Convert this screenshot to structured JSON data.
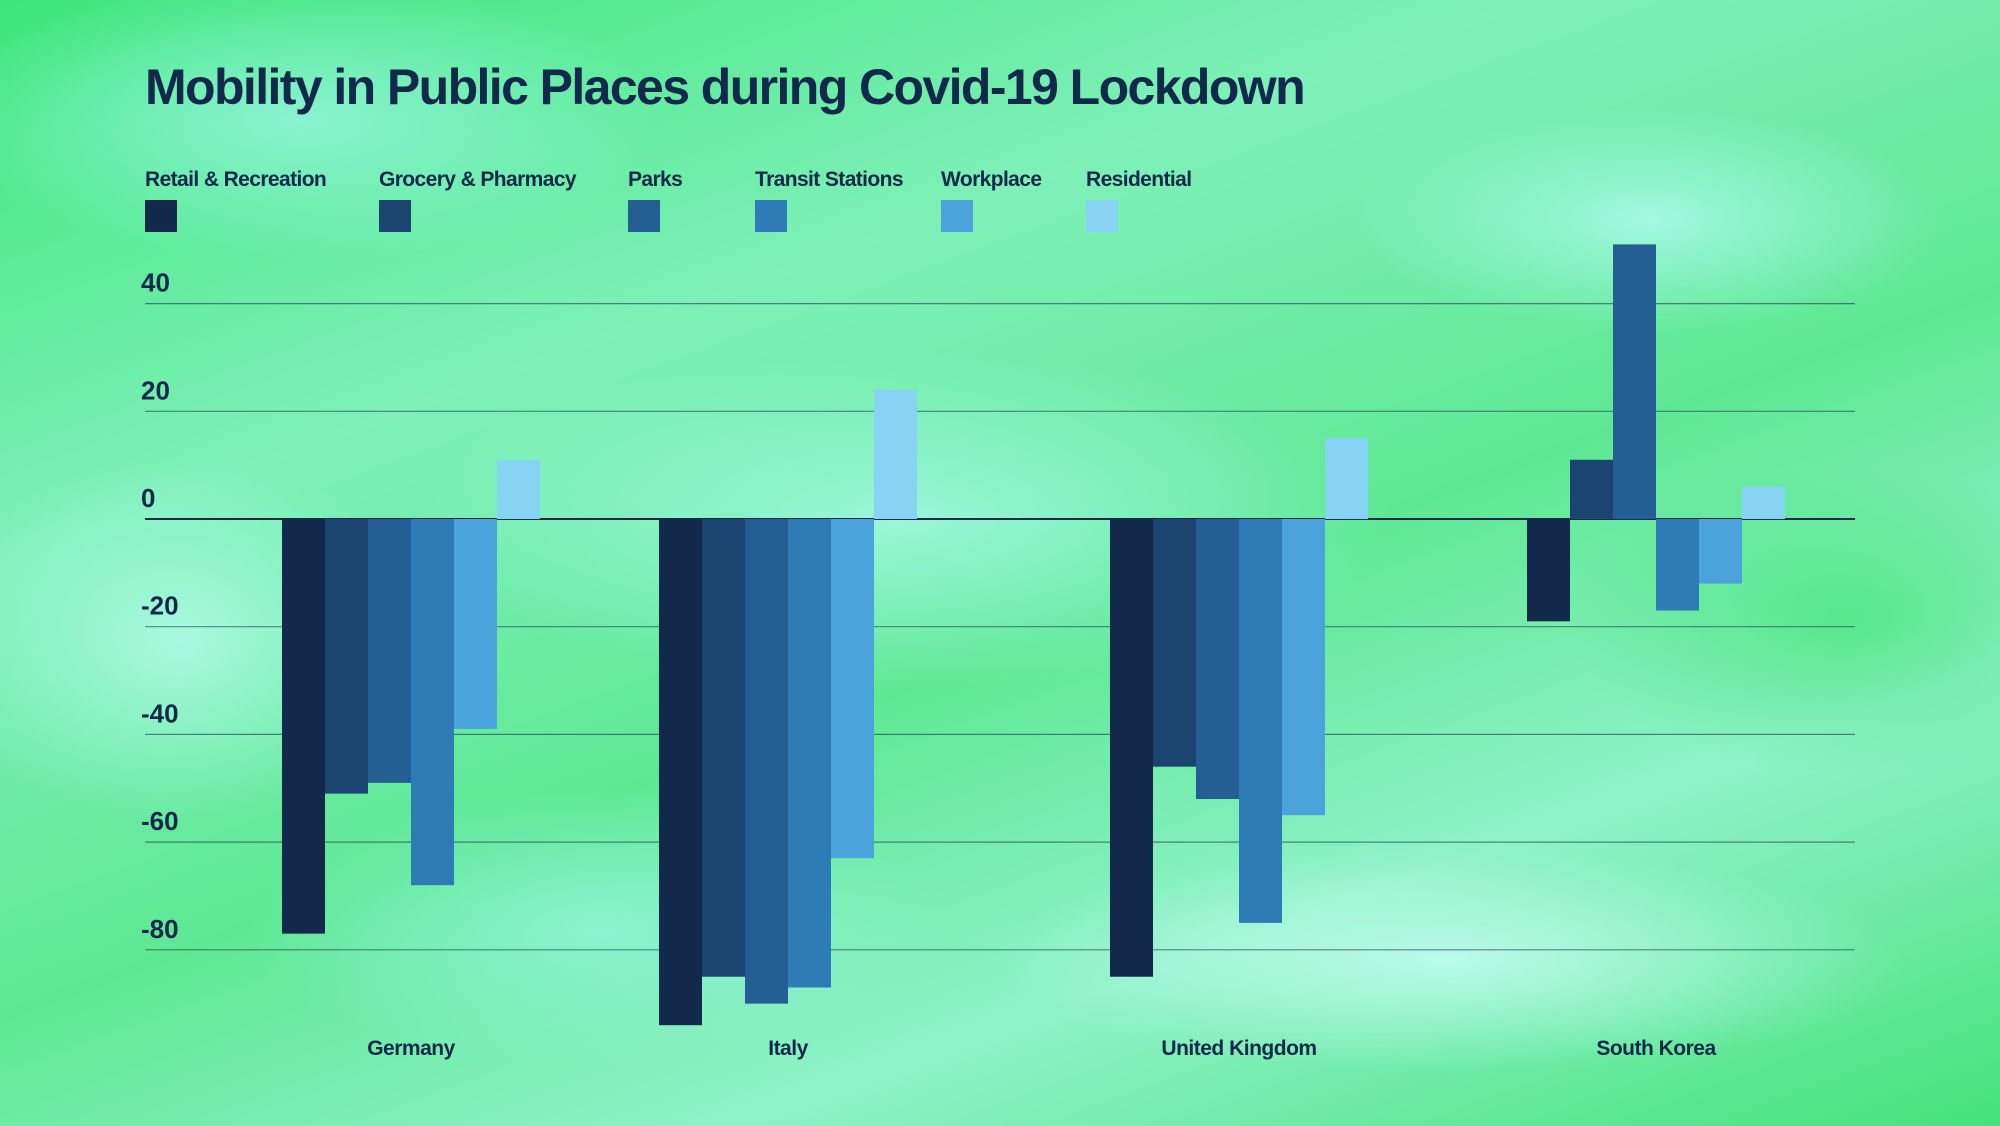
{
  "title": "Mobility in Public Places during Covid-19 Lockdown",
  "chart_data": {
    "type": "bar",
    "title": "Mobility in Public Places during Covid-19 Lockdown",
    "xlabel": "",
    "ylabel": "",
    "categories": [
      "Germany",
      "Italy",
      "United Kingdom",
      "South Korea"
    ],
    "series": [
      {
        "name": "Retail & Recreation",
        "color": "#13294b",
        "values": [
          -77,
          -94,
          -85,
          -19
        ]
      },
      {
        "name": "Grocery & Pharmacy",
        "color": "#1b4470",
        "values": [
          -51,
          -85,
          -46,
          11
        ]
      },
      {
        "name": "Parks",
        "color": "#245f93",
        "values": [
          -49,
          -90,
          -52,
          51
        ]
      },
      {
        "name": "Transit Stations",
        "color": "#2e7cb6",
        "values": [
          -68,
          -87,
          -75,
          -17
        ]
      },
      {
        "name": "Workplace",
        "color": "#4ba3dc",
        "values": [
          -39,
          -63,
          -55,
          -12
        ]
      },
      {
        "name": "Residential",
        "color": "#86d3f4",
        "values": [
          11,
          24,
          15,
          6
        ]
      }
    ],
    "yticks": [
      40,
      20,
      0,
      -20,
      -40,
      -60,
      -80
    ],
    "ylim": [
      -100,
      50
    ],
    "grid": true,
    "legend_position": "top-left"
  }
}
